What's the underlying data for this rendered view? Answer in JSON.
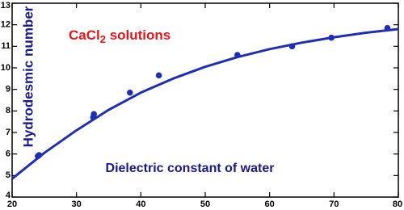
{
  "chart_data": {
    "type": "scatter",
    "y_label": "Hydrodesmic number",
    "x_label": "Dielectric constant of water",
    "annotation": {
      "text": "CaCl",
      "subscript": "2",
      "suffix": " solutions",
      "color": "#e8141c"
    },
    "label_color": "#1a1a8c",
    "xlim": [
      20,
      80
    ],
    "xticks": [
      20,
      30,
      40,
      50,
      60,
      70,
      80
    ],
    "ylim": [
      4,
      13
    ],
    "yticks": [
      4,
      5,
      6,
      7,
      8,
      9,
      10,
      11,
      12,
      13
    ],
    "series": [
      {
        "type": "scatter",
        "color": "#1f2fb0",
        "x": [
          24,
          24.2,
          32.6,
          32.7,
          38.3,
          42.8,
          55,
          63.5,
          69.6,
          78.3
        ],
        "values": [
          5.9,
          5.95,
          7.7,
          7.85,
          8.85,
          9.65,
          10.6,
          11.0,
          11.4,
          11.85
        ]
      },
      {
        "type": "line",
        "color": "#1f2fb0",
        "x": [
          20,
          25,
          30,
          35,
          40,
          45,
          50,
          55,
          60,
          65,
          70,
          75,
          80
        ],
        "values": [
          4.85,
          6.05,
          7.1,
          8.05,
          8.85,
          9.5,
          10.05,
          10.5,
          10.87,
          11.17,
          11.42,
          11.63,
          11.8
        ]
      }
    ]
  }
}
